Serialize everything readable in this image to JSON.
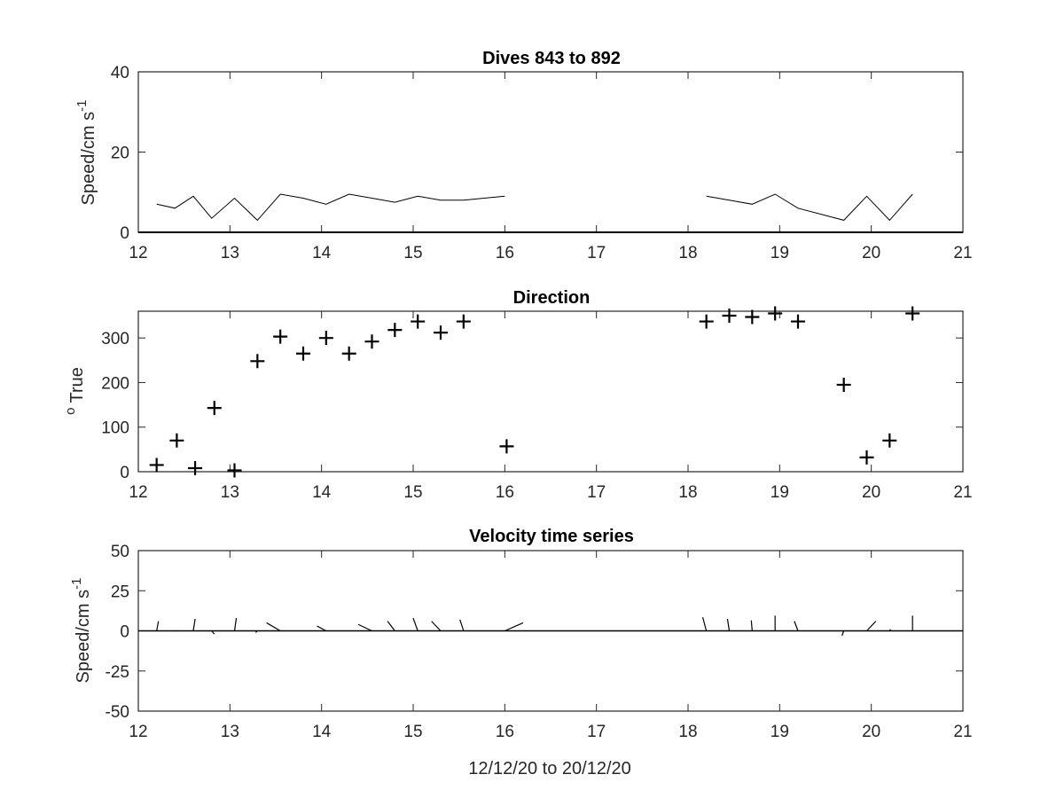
{
  "chart_data": [
    {
      "type": "line",
      "title": "Dives 843 to 892",
      "ylabel": "Speed/cm s",
      "ylabel_superscript": "-1",
      "xlim": [
        12,
        21
      ],
      "ylim": [
        0,
        40
      ],
      "xticks": [
        "12",
        "13",
        "14",
        "15",
        "16",
        "17",
        "18",
        "19",
        "20",
        "21"
      ],
      "yticks": [
        "0",
        "20",
        "40"
      ],
      "grid": false,
      "series": [
        {
          "values": [
            [
              12.2,
              7
            ],
            [
              12.4,
              6
            ],
            [
              12.6,
              9
            ],
            [
              12.8,
              3.5
            ],
            [
              13.05,
              8.5
            ],
            [
              13.3,
              3
            ],
            [
              13.55,
              9.5
            ],
            [
              13.8,
              8.5
            ],
            [
              14.05,
              7
            ],
            [
              14.3,
              9.5
            ],
            [
              14.55,
              8.5
            ],
            [
              14.8,
              7.5
            ],
            [
              15.05,
              9
            ],
            [
              15.3,
              8
            ],
            [
              15.55,
              8
            ],
            [
              16.0,
              9
            ],
            null,
            [
              18.2,
              9
            ],
            [
              18.45,
              8
            ],
            [
              18.7,
              7
            ],
            [
              18.95,
              9.5
            ],
            [
              19.2,
              6
            ],
            [
              19.7,
              3
            ],
            [
              19.95,
              9
            ],
            [
              20.2,
              3
            ],
            [
              20.45,
              9.5
            ]
          ]
        }
      ]
    },
    {
      "type": "scatter",
      "title": "Direction",
      "ylabel": "True",
      "ylabel_prefix_superscript": "o",
      "xlim": [
        12,
        21
      ],
      "ylim": [
        0,
        360
      ],
      "xticks": [
        "12",
        "13",
        "14",
        "15",
        "16",
        "17",
        "18",
        "19",
        "20",
        "21"
      ],
      "yticks": [
        "0",
        "100",
        "200",
        "300"
      ],
      "grid": false,
      "marker": "+",
      "points": [
        [
          12.2,
          15
        ],
        [
          12.42,
          70
        ],
        [
          12.62,
          8
        ],
        [
          12.83,
          143
        ],
        [
          13.05,
          3
        ],
        [
          13.3,
          248
        ],
        [
          13.55,
          303
        ],
        [
          13.8,
          265
        ],
        [
          14.05,
          300
        ],
        [
          14.3,
          265
        ],
        [
          14.55,
          292
        ],
        [
          14.8,
          318
        ],
        [
          15.05,
          337
        ],
        [
          15.3,
          312
        ],
        [
          15.55,
          337
        ],
        [
          16.02,
          57
        ],
        [
          18.2,
          337
        ],
        [
          18.45,
          350
        ],
        [
          18.7,
          347
        ],
        [
          18.95,
          355
        ],
        [
          19.2,
          337
        ],
        [
          19.7,
          195
        ],
        [
          19.95,
          32
        ],
        [
          20.2,
          70
        ],
        [
          20.45,
          355
        ]
      ]
    },
    {
      "type": "line",
      "subtype": "stick",
      "title": "Velocity time series",
      "ylabel": "Speed/cm s",
      "ylabel_superscript": "-1",
      "xlabel": "12/12/20 to 20/12/20",
      "xlim": [
        12,
        21
      ],
      "ylim": [
        -50,
        50
      ],
      "xticks": [
        "12",
        "13",
        "14",
        "15",
        "16",
        "17",
        "18",
        "19",
        "20",
        "21"
      ],
      "yticks": [
        "50",
        "25",
        "0",
        "-25",
        "-50"
      ],
      "grid": false,
      "sticks": [
        {
          "t": 12.2,
          "u": 0.02,
          "v": 0.06
        },
        {
          "t": 12.4,
          "u": 0.02,
          "v": 0.0
        },
        {
          "t": 12.6,
          "u": 0.02,
          "v": 0.075
        },
        {
          "t": 12.8,
          "u": 0.03,
          "v": -0.02
        },
        {
          "t": 13.05,
          "u": 0.02,
          "v": 0.08
        },
        {
          "t": 13.3,
          "u": -0.02,
          "v": -0.01
        },
        {
          "t": 13.55,
          "u": -0.15,
          "v": 0.05
        },
        {
          "t": 14.05,
          "u": -0.1,
          "v": 0.03
        },
        {
          "t": 14.55,
          "u": -0.15,
          "v": 0.04
        },
        {
          "t": 14.8,
          "u": -0.08,
          "v": 0.06
        },
        {
          "t": 15.05,
          "u": -0.05,
          "v": 0.08
        },
        {
          "t": 15.3,
          "u": -0.1,
          "v": 0.06
        },
        {
          "t": 15.55,
          "u": -0.04,
          "v": 0.07
        },
        {
          "t": 16.0,
          "u": 0.2,
          "v": 0.05
        },
        {
          "t": 18.2,
          "u": -0.04,
          "v": 0.085
        },
        {
          "t": 18.45,
          "u": -0.02,
          "v": 0.075
        },
        {
          "t": 18.7,
          "u": -0.01,
          "v": 0.065
        },
        {
          "t": 18.95,
          "u": 0.0,
          "v": 0.095
        },
        {
          "t": 19.2,
          "u": -0.04,
          "v": 0.06
        },
        {
          "t": 19.7,
          "u": -0.02,
          "v": -0.03
        },
        {
          "t": 19.95,
          "u": 0.1,
          "v": 0.06
        },
        {
          "t": 20.2,
          "u": 0.01,
          "v": 0.01
        },
        {
          "t": 20.45,
          "u": 0.0,
          "v": 0.095
        }
      ]
    }
  ]
}
